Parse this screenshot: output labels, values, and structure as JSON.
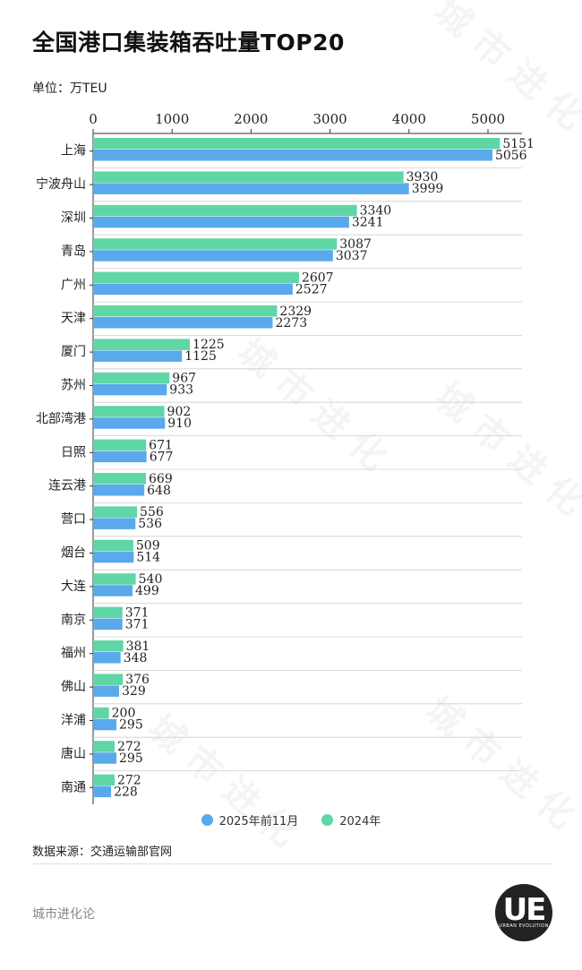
{
  "title": "全国港口集装箱吞吐量TOP20",
  "unit": "单位：万TEU",
  "legend": {
    "series_a": "2025年前11月",
    "series_b": "2024年"
  },
  "source": "数据来源：交通运输部官网",
  "footer": "城市进化论",
  "logo": {
    "main": "UE",
    "sub": "URBAN EVOLUTION"
  },
  "colors": {
    "series_2025": "#5aa9ec",
    "series_2024": "#5fd6a5"
  },
  "chart_data": {
    "type": "bar",
    "orientation": "horizontal",
    "title": "全国港口集装箱吞吐量TOP20",
    "xlim": [
      0,
      5000
    ],
    "xticks": [
      0,
      1000,
      2000,
      3000,
      4000,
      5000
    ],
    "grid": false,
    "legend_position": "bottom",
    "categories": [
      "上海",
      "宁波舟山",
      "深圳",
      "青岛",
      "广州",
      "天津",
      "厦门",
      "苏州",
      "北部湾港",
      "日照",
      "连云港",
      "营口",
      "烟台",
      "大连",
      "南京",
      "福州",
      "佛山",
      "洋浦",
      "唐山",
      "南通"
    ],
    "series": [
      {
        "name": "2024年",
        "values": [
          5151,
          3930,
          3340,
          3087,
          2607,
          2329,
          1225,
          967,
          902,
          671,
          669,
          556,
          509,
          540,
          371,
          381,
          376,
          200,
          272,
          272
        ]
      },
      {
        "name": "2025年前11月",
        "values": [
          5056,
          3999,
          3241,
          3037,
          2527,
          2273,
          1125,
          933,
          910,
          677,
          648,
          536,
          514,
          499,
          371,
          348,
          329,
          295,
          295,
          228
        ]
      }
    ]
  }
}
